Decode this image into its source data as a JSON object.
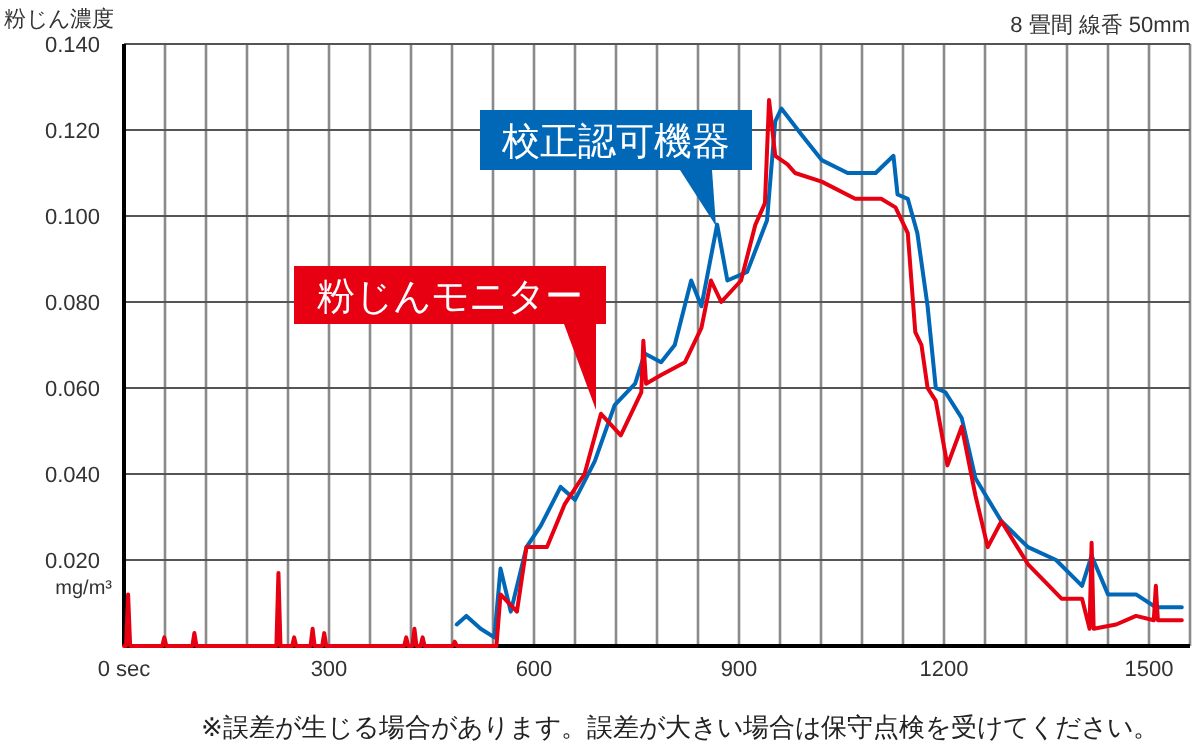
{
  "chart_data": {
    "type": "line",
    "subtitle": "8 畳間 線香 50mm",
    "ylabel": "粉じん濃度",
    "annotations": [
      "mg/m³",
      "※誤差が生じる場合があります。誤差が大きい場合は保守点検を受けてください。"
    ],
    "xlim": [
      0,
      1560
    ],
    "ylim": [
      0,
      0.14
    ],
    "xticks": [
      {
        "value": 0,
        "label": "0 sec"
      },
      {
        "value": 60,
        "label": null
      },
      {
        "value": 120,
        "label": null
      },
      {
        "value": 180,
        "label": null
      },
      {
        "value": 240,
        "label": null
      },
      300,
      {
        "value": 360,
        "label": null
      },
      {
        "value": 420,
        "label": null
      },
      {
        "value": 480,
        "label": null
      },
      {
        "value": 540,
        "label": null
      },
      600,
      {
        "value": 660,
        "label": null
      },
      {
        "value": 720,
        "label": null
      },
      {
        "value": 780,
        "label": null
      },
      {
        "value": 840,
        "label": null
      },
      900,
      {
        "value": 960,
        "label": null
      },
      {
        "value": 1020,
        "label": null
      },
      {
        "value": 1080,
        "label": null
      },
      {
        "value": 1140,
        "label": null
      },
      1200,
      {
        "value": 1260,
        "label": null
      },
      {
        "value": 1320,
        "label": null
      },
      {
        "value": 1380,
        "label": null
      },
      {
        "value": 1440,
        "label": null
      },
      1500,
      {
        "value": 1560,
        "label": null
      }
    ],
    "yticks": [
      {
        "value": 0.02,
        "label": "0.020"
      },
      {
        "value": 0.04,
        "label": "0.040"
      },
      {
        "value": 0.06,
        "label": "0.060"
      },
      {
        "value": 0.08,
        "label": "0.080"
      },
      {
        "value": 0.1,
        "label": "0.100"
      },
      {
        "value": 0.12,
        "label": "0.120"
      },
      {
        "value": 0.14,
        "label": "0.140"
      }
    ],
    "grid": true,
    "series": [
      {
        "name": "校正認可機器",
        "color": "#0068b7",
        "x": [
          487,
          501,
          522,
          542,
          551,
          566,
          589,
          610,
          639,
          660,
          689,
          718,
          748,
          762,
          786,
          806,
          830,
          845,
          868,
          883,
          912,
          941,
          953,
          962,
          991,
          1021,
          1059,
          1100,
          1126,
          1132,
          1147,
          1161,
          1176,
          1188,
          1202,
          1226,
          1246,
          1284,
          1323,
          1364,
          1402,
          1416,
          1440,
          1481,
          1510,
          1548
        ],
        "values": [
          0.005,
          0.007,
          0.004,
          0.002,
          0.018,
          0.008,
          0.023,
          0.028,
          0.037,
          0.034,
          0.043,
          0.056,
          0.061,
          0.068,
          0.066,
          0.07,
          0.085,
          0.079,
          0.098,
          0.085,
          0.087,
          0.099,
          0.122,
          0.125,
          0.119,
          0.113,
          0.11,
          0.11,
          0.114,
          0.105,
          0.104,
          0.096,
          0.079,
          0.06,
          0.059,
          0.053,
          0.039,
          0.029,
          0.023,
          0.02,
          0.014,
          0.021,
          0.012,
          0.012,
          0.009,
          0.009
        ]
      },
      {
        "name": "粉じんモニター",
        "color": "#e60012",
        "x": [
          0,
          3,
          6,
          9,
          56,
          59,
          62,
          100,
          103,
          106,
          223,
          226,
          229,
          246,
          249,
          252,
          273,
          276,
          279,
          290,
          293,
          296,
          410,
          413,
          416,
          422,
          425,
          428,
          434,
          437,
          440,
          481,
          484,
          487,
          545,
          551,
          575,
          589,
          619,
          645,
          674,
          698,
          727,
          757,
          760,
          764,
          786,
          821,
          845,
          859,
          874,
          903,
          924,
          938,
          944,
          953,
          971,
          982,
          1021,
          1070,
          1108,
          1129,
          1147,
          1158,
          1167,
          1176,
          1188,
          1205,
          1226,
          1246,
          1264,
          1284,
          1323,
          1372,
          1402,
          1413,
          1416,
          1419,
          1452,
          1481,
          1507,
          1510,
          1513,
          1519,
          1548
        ],
        "values": [
          0,
          0,
          0.012,
          0,
          0,
          0.002,
          0,
          0,
          0.003,
          0,
          0,
          0.017,
          0,
          0,
          0.002,
          0,
          0,
          0.004,
          0,
          0,
          0.003,
          0,
          0,
          0.002,
          0,
          0,
          0.004,
          0,
          0,
          0.002,
          0,
          0,
          0.001,
          0,
          0,
          0.012,
          0.008,
          0.023,
          0.023,
          0.033,
          0.04,
          0.054,
          0.049,
          0.059,
          0.071,
          0.061,
          0.063,
          0.066,
          0.074,
          0.085,
          0.08,
          0.085,
          0.098,
          0.103,
          0.127,
          0.114,
          0.112,
          0.11,
          0.108,
          0.104,
          0.104,
          0.102,
          0.096,
          0.073,
          0.07,
          0.06,
          0.057,
          0.042,
          0.051,
          0.035,
          0.023,
          0.029,
          0.019,
          0.011,
          0.011,
          0.004,
          0.024,
          0.004,
          0.005,
          0.007,
          0.006,
          0.014,
          0.006,
          0.006,
          0.006
        ]
      }
    ]
  }
}
